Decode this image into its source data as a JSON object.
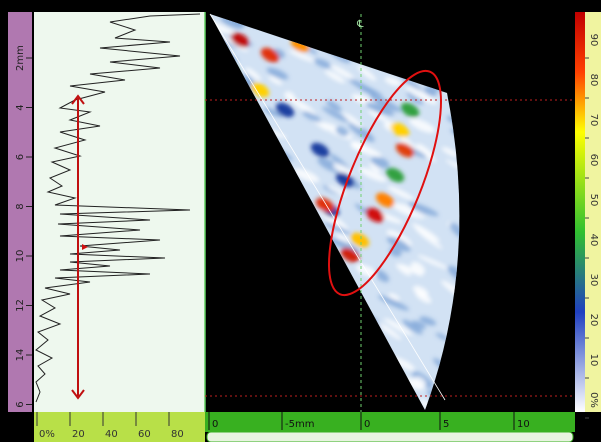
{
  "depth_ruler": {
    "labels": [
      "2mm",
      "4",
      "6",
      "8",
      "10",
      "12",
      "14",
      "6"
    ]
  },
  "amplitude_ruler": {
    "labels": [
      "0%",
      "20",
      "40",
      "60",
      "80"
    ]
  },
  "position_ruler": {
    "labels": [
      "0",
      "-5mm",
      "0",
      "5",
      "10"
    ]
  },
  "color_scale": {
    "labels": [
      "90",
      "80",
      "70",
      "60",
      "50",
      "40",
      "30",
      "20",
      "10",
      "0%"
    ]
  },
  "centerline_label": "℄"
}
